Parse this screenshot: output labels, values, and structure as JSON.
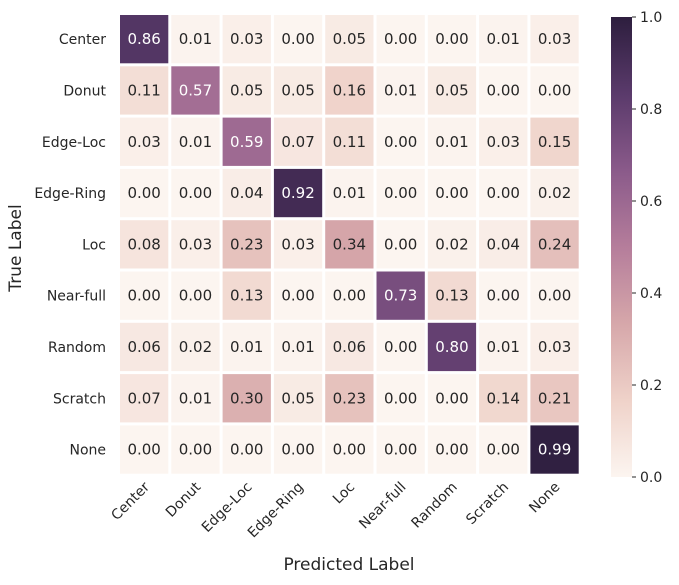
{
  "chart_data": {
    "type": "heatmap",
    "title": "",
    "xlabel": "Predicted Label",
    "ylabel": "True Label",
    "x_categories": [
      "Center",
      "Donut",
      "Edge-Loc",
      "Edge-Ring",
      "Loc",
      "Near-full",
      "Random",
      "Scratch",
      "None"
    ],
    "y_categories": [
      "Center",
      "Donut",
      "Edge-Loc",
      "Edge-Ring",
      "Loc",
      "Near-full",
      "Random",
      "Scratch",
      "None"
    ],
    "values": [
      [
        0.86,
        0.01,
        0.03,
        0.0,
        0.05,
        0.0,
        0.0,
        0.01,
        0.03
      ],
      [
        0.11,
        0.57,
        0.05,
        0.05,
        0.16,
        0.01,
        0.05,
        0.0,
        0.0
      ],
      [
        0.03,
        0.01,
        0.59,
        0.07,
        0.11,
        0.0,
        0.01,
        0.03,
        0.15
      ],
      [
        0.0,
        0.0,
        0.04,
        0.92,
        0.01,
        0.0,
        0.0,
        0.0,
        0.02
      ],
      [
        0.08,
        0.03,
        0.23,
        0.03,
        0.34,
        0.0,
        0.02,
        0.04,
        0.24
      ],
      [
        0.0,
        0.0,
        0.13,
        0.0,
        0.0,
        0.73,
        0.13,
        0.0,
        0.0
      ],
      [
        0.06,
        0.02,
        0.01,
        0.01,
        0.06,
        0.0,
        0.8,
        0.01,
        0.03
      ],
      [
        0.07,
        0.01,
        0.3,
        0.05,
        0.23,
        0.0,
        0.0,
        0.14,
        0.21
      ],
      [
        0.0,
        0.0,
        0.0,
        0.0,
        0.0,
        0.0,
        0.0,
        0.0,
        0.99
      ]
    ],
    "value_format": "0.00",
    "colorbar": {
      "range": [
        0.0,
        1.0
      ],
      "ticks": [
        0.0,
        0.2,
        0.4,
        0.6,
        0.8,
        1.0
      ],
      "tick_labels": [
        "0.0",
        "0.2",
        "0.4",
        "0.6",
        "0.8",
        "1.0"
      ],
      "colors": [
        "#fcf5f0",
        "#efd2c9",
        "#d6a7aa",
        "#b57d9b",
        "#8a5a8a",
        "#5a3a6b",
        "#2d1e3e"
      ]
    },
    "grid": false,
    "legend": "colorbar-right"
  }
}
